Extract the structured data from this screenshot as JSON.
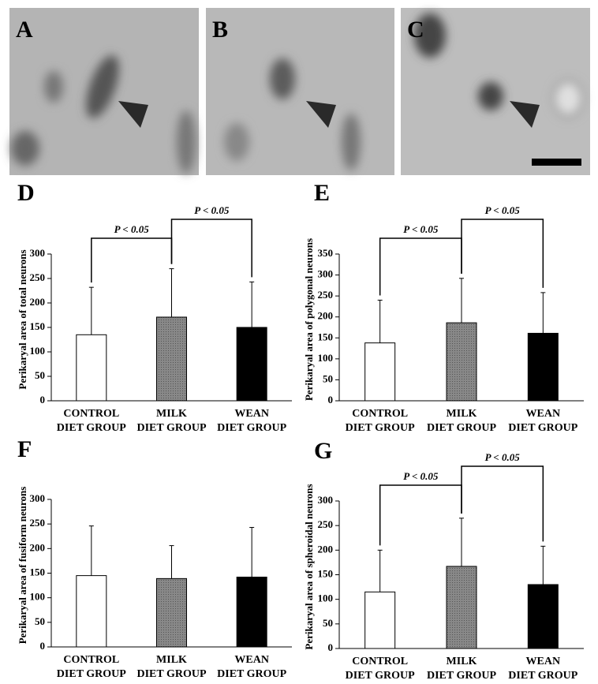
{
  "images": [
    {
      "label": "A"
    },
    {
      "label": "B"
    },
    {
      "label": "C"
    }
  ],
  "chart_data": [
    {
      "type": "bar",
      "panel": "D",
      "y_label": "Perikaryal area of total neurons",
      "categories": [
        "CONTROL DIET GROUP",
        "MILK DIET GROUP",
        "WEAN DIET GROUP"
      ],
      "values": [
        135,
        171,
        150
      ],
      "errors": [
        97,
        99,
        93
      ],
      "colors": [
        "#ffffff",
        "#808080",
        "#000000"
      ],
      "ylim": [
        0,
        300
      ],
      "yticks": [
        0,
        50,
        100,
        150,
        200,
        250,
        300
      ],
      "comparisons": [
        {
          "from": 0,
          "to": 1,
          "label": "P < 0.05"
        },
        {
          "from": 1,
          "to": 2,
          "label": "P < 0.05"
        }
      ]
    },
    {
      "type": "bar",
      "panel": "E",
      "y_label": "Perikaryal area of polygonal neurons",
      "categories": [
        "CONTROL DIET GROUP",
        "MILK DIET GROUP",
        "WEAN DIET GROUP"
      ],
      "values": [
        138,
        186,
        161
      ],
      "errors": [
        102,
        106,
        97
      ],
      "colors": [
        "#ffffff",
        "#808080",
        "#000000"
      ],
      "ylim": [
        0,
        350
      ],
      "yticks": [
        0,
        50,
        100,
        150,
        200,
        250,
        300,
        350
      ],
      "comparisons": [
        {
          "from": 0,
          "to": 1,
          "label": "P < 0.05"
        },
        {
          "from": 1,
          "to": 2,
          "label": "P < 0.05"
        }
      ]
    },
    {
      "type": "bar",
      "panel": "F",
      "y_label": "Perikaryal area of  fusiform neurons",
      "categories": [
        "CONTROL DIET GROUP",
        "MILK DIET GROUP",
        "WEAN DIET GROUP"
      ],
      "values": [
        145,
        139,
        142
      ],
      "errors": [
        101,
        67,
        101
      ],
      "colors": [
        "#ffffff",
        "#808080",
        "#000000"
      ],
      "ylim": [
        0,
        300
      ],
      "yticks": [
        0,
        50,
        100,
        150,
        200,
        250,
        300
      ]
    },
    {
      "type": "bar",
      "panel": "G",
      "y_label": "Perikaryal area of  spheroidal neurons",
      "categories": [
        "CONTROL DIET GROUP",
        "MILK DIET GROUP",
        "WEAN DIET GROUP"
      ],
      "values": [
        115,
        167,
        130
      ],
      "errors": [
        85,
        98,
        78
      ],
      "colors": [
        "#ffffff",
        "#808080",
        "#000000"
      ],
      "ylim": [
        0,
        300
      ],
      "yticks": [
        0,
        50,
        100,
        150,
        200,
        250,
        300
      ],
      "comparisons": [
        {
          "from": 0,
          "to": 1,
          "label": "P < 0.05"
        },
        {
          "from": 1,
          "to": 2,
          "label": "P < 0.05"
        }
      ]
    }
  ]
}
